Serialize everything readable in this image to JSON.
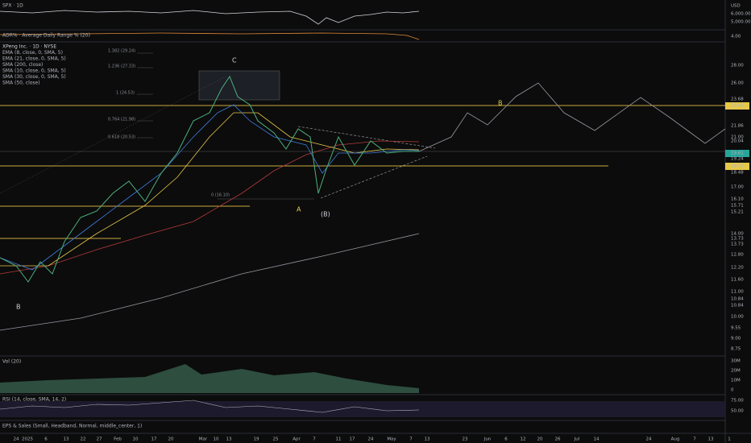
{
  "spx_pane": {
    "legend": "SPX · 1D",
    "axis": [
      "USD",
      "6,000.00",
      "5,000.00"
    ]
  },
  "adr_pane": {
    "legend": "ADR% · Average Daily Range % (20)",
    "axis": [
      "4.00"
    ]
  },
  "main_pane": {
    "legend": [
      "XPeng Inc. · 1D · NYSE",
      "EMA (8, close, 0, SMA, 5)",
      "EMA (21, close, 0, SMA, 5)",
      "SMA (200, close)",
      "SMA (10, close, 0, SMA, 5)",
      "SMA (30, close, 0, SMA, 5)",
      "SMA (50, close)"
    ],
    "fib_labels": [
      "1.382 (29.24)",
      "1.236 (27.33)",
      "1 (24.53)",
      "0.764 (21.98)",
      "0.618 (20.53)",
      "0 (16.10)"
    ],
    "wave_labels": [
      "C",
      "A",
      "(B)",
      "B",
      "B"
    ],
    "axis": [
      "28.00",
      "26.00",
      "23.68",
      "23.68",
      "21.86",
      "21.00",
      "20.04",
      "19.61",
      "19.24",
      "18.53",
      "18.48",
      "17.00",
      "16.10",
      "15.71",
      "15.21",
      "14.00",
      "13.73",
      "13.73",
      "12.80",
      "12.20",
      "11.60",
      "11.00",
      "10.84",
      "10.84",
      "10.00",
      "9.55",
      "9.00",
      "8.75"
    ]
  },
  "vol_pane": {
    "legend": "Vol (20)",
    "axis": [
      "30M",
      "20M",
      "10M",
      "0"
    ]
  },
  "rsi_pane": {
    "legend": "RSI (14, close, SMA, 14, 2)",
    "axis": [
      "75.00",
      "50.00"
    ]
  },
  "eps_pane": {
    "legend": "EPS & Sales (Small, Headband, Normal, middle_center, 1)"
  },
  "x_axis": [
    "24",
    "2025",
    "6",
    "13",
    "22",
    "27",
    "Feb",
    "10",
    "17",
    "20",
    "Mar",
    "10",
    "13",
    "19",
    "25",
    "Apr",
    "7",
    "11",
    "17",
    "24",
    "May",
    "7",
    "13",
    "23",
    "Jun",
    "6",
    "12",
    "20",
    "26",
    "Jul",
    "14",
    "24",
    "Aug",
    "7",
    "13",
    "1"
  ]
}
